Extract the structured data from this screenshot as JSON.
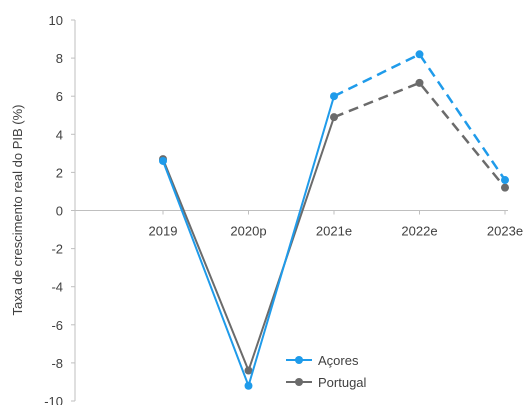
{
  "chart_data": {
    "type": "line",
    "ylabel": "Taxa de crescimento real do PIB (%)",
    "xlabel": "",
    "title": "",
    "categories": [
      "2019",
      "2020p",
      "2021e",
      "2022e",
      "2023e"
    ],
    "ylim": [
      -10,
      10
    ],
    "yticks": [
      10,
      8,
      6,
      4,
      2,
      0,
      -2,
      -4,
      -6,
      -8,
      -10
    ],
    "grid": false,
    "legend_position": "bottom-right",
    "series": [
      {
        "name": "Açores",
        "color": "#1f9bea",
        "values": [
          2.6,
          -9.2,
          6.0,
          8.2,
          1.6
        ],
        "solid_until_index": 2
      },
      {
        "name": "Portugal",
        "color": "#6b6b6b",
        "values": [
          2.7,
          -8.4,
          4.9,
          6.7,
          1.2
        ],
        "solid_until_index": 2
      }
    ]
  }
}
